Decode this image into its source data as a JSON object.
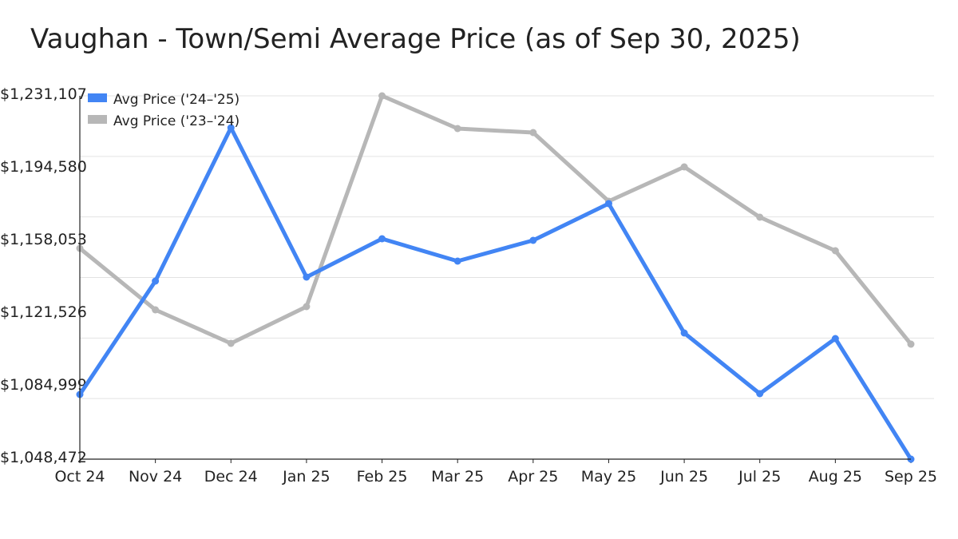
{
  "chart_data": {
    "type": "line",
    "title": "Vaughan - Town/Semi Average Price (as of Sep 30, 2025)",
    "xlabel": "",
    "ylabel": "",
    "categories": [
      "Oct 24",
      "Nov 24",
      "Dec 24",
      "Jan 25",
      "Feb 25",
      "Mar 25",
      "Apr 25",
      "May 25",
      "Jun 25",
      "Jul 25",
      "Aug 25",
      "Sep 25"
    ],
    "ylim": [
      1048472,
      1231107
    ],
    "yticks": [
      "$1,048,472",
      "$1,084,999",
      "$1,121,526",
      "$1,158,053",
      "$1,194,580",
      "$1,231,107"
    ],
    "gridlines": 6,
    "legend_position": "top-left",
    "series": [
      {
        "name": "Avg Price ('24–'25)",
        "color": "#4285f4",
        "values": [
          1080985,
          1137983,
          1215051,
          1139990,
          1159258,
          1148018,
          1158454,
          1176919,
          1111892,
          1081387,
          1109083,
          1048472
        ]
      },
      {
        "name": "Avg Price ('23–'24)",
        "color": "#b7b7b7",
        "values": [
          1154441,
          1123533,
          1106674,
          1125139,
          1231107,
          1214649,
          1212642,
          1178123,
          1195382,
          1170096,
          1153238,
          1106274
        ]
      }
    ]
  }
}
